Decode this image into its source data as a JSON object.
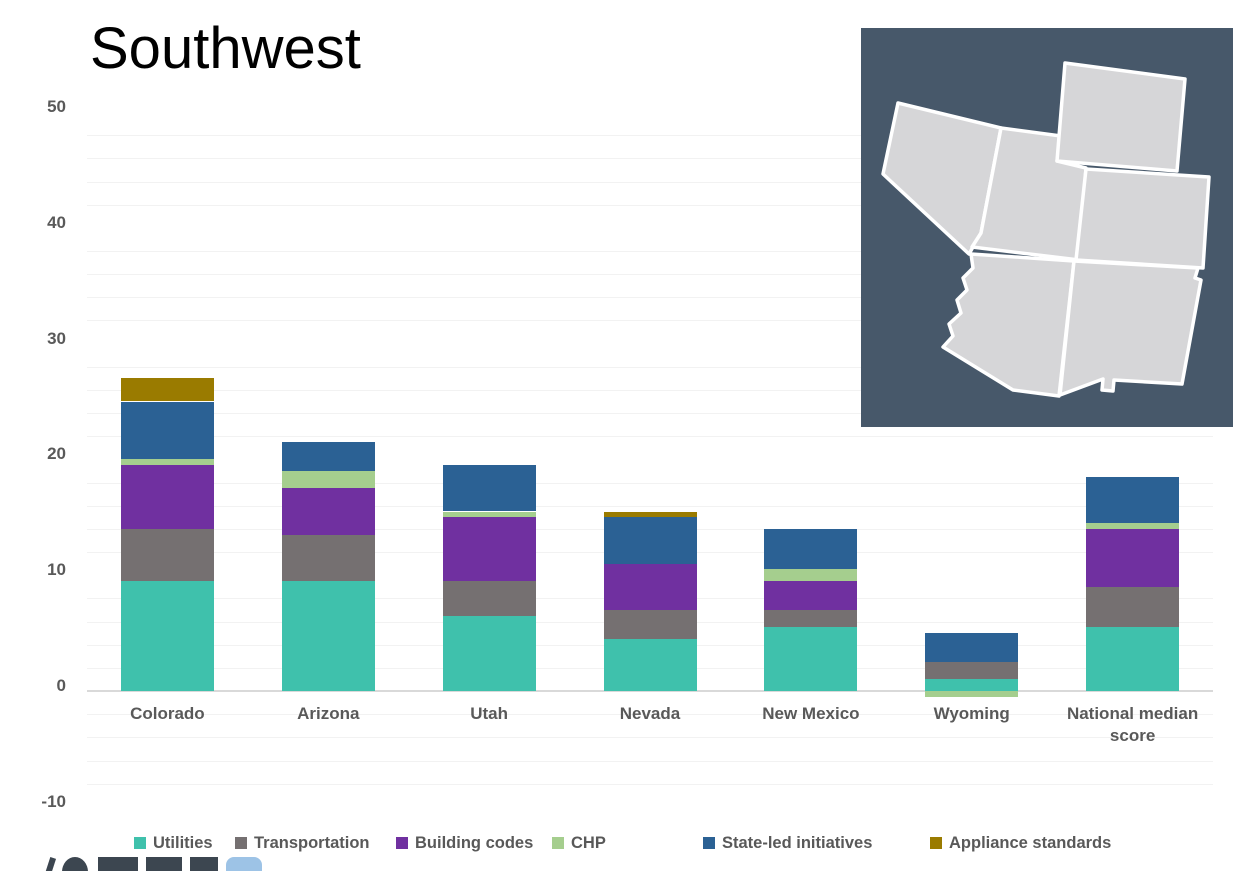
{
  "title": "Southwest",
  "y_axis": {
    "tick_labels": [
      "50",
      "40",
      "30",
      "20",
      "10",
      "0",
      "-10"
    ]
  },
  "chart_data": {
    "type": "bar",
    "stacked": true,
    "title": "Southwest",
    "categories": [
      "Colorado",
      "Arizona",
      "Utah",
      "Nevada",
      "New Mexico",
      "Wyoming",
      "National median score"
    ],
    "series": [
      {
        "name": "Utilities",
        "color": "#3FC1AC",
        "values": [
          9.5,
          9.5,
          6.5,
          4.5,
          5.5,
          1.0,
          5.5
        ]
      },
      {
        "name": "Transportation",
        "color": "#757071",
        "values": [
          4.5,
          4.0,
          3.0,
          2.5,
          1.5,
          1.5,
          3.5
        ]
      },
      {
        "name": "Building codes",
        "color": "#7030A0",
        "values": [
          5.5,
          4.0,
          5.5,
          4.0,
          2.5,
          0.0,
          5.0
        ]
      },
      {
        "name": "CHP",
        "color": "#A5CE8E",
        "values": [
          0.5,
          1.5,
          0.5,
          0.0,
          1.0,
          -0.5,
          0.5
        ]
      },
      {
        "name": "State-led initiatives",
        "color": "#2B6194",
        "values": [
          5.0,
          2.5,
          4.0,
          4.0,
          3.5,
          2.5,
          4.0
        ]
      },
      {
        "name": "Appliance standards",
        "color": "#9A7B00",
        "values": [
          2.0,
          0.0,
          0.0,
          0.5,
          0.0,
          0.0,
          0.0
        ]
      }
    ],
    "totals": [
      27,
      21.5,
      19.5,
      15.5,
      14,
      4.5,
      18.5
    ],
    "ylim": [
      -10,
      50
    ],
    "y_major_step": 10,
    "minor_gridline_step": 2,
    "grid": true,
    "legend_position": "bottom"
  },
  "legend": {
    "items": [
      "Utilities",
      "Transportation",
      "Building codes",
      "CHP",
      "State-led initiatives",
      "Appliance standards"
    ]
  },
  "map_inset": {
    "region": "Southwest states",
    "states": [
      "Nevada",
      "Utah",
      "Wyoming",
      "Colorado",
      "Arizona",
      "New Mexico"
    ],
    "background_color": "#47586A",
    "state_fill": "#D6D6D8",
    "state_border": "#FFFFFF"
  },
  "colors": {
    "axis_text": "#595959",
    "gridline": "#F2F2F2",
    "zero_line": "#D9D9D9",
    "title_text": "#000000"
  },
  "logo": {
    "name": "sweep-logo-partially-cropped",
    "dark": "#3C4650",
    "accent": "#9DC3E6"
  }
}
